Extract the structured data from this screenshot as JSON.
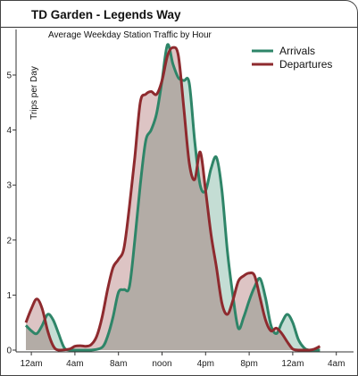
{
  "page": {
    "title": "TD Garden - Legends Way"
  },
  "chart_data": {
    "type": "area",
    "title": "Average Weekday Station Traffic by Hour",
    "xlabel": "",
    "ylabel": "Trips per Day",
    "x_unit": "hours since midnight (0–27)",
    "xlim": [
      0,
      27
    ],
    "ylim": [
      0,
      5.6
    ],
    "y_ticks": [
      0,
      1,
      2,
      3,
      4,
      5
    ],
    "x_ticks": [
      {
        "x": 0.5,
        "label": "12am"
      },
      {
        "x": 4.5,
        "label": "4am"
      },
      {
        "x": 8.5,
        "label": "8am"
      },
      {
        "x": 12.5,
        "label": "noon"
      },
      {
        "x": 16.5,
        "label": "4pm"
      },
      {
        "x": 20.5,
        "label": "8pm"
      },
      {
        "x": 24.5,
        "label": "12am"
      },
      {
        "x": 28.5,
        "label": "4am"
      }
    ],
    "legend_position": "top-right",
    "overlap_color": "#b3aca6",
    "series": [
      {
        "name": "Arrivals",
        "color": "#2e8568",
        "fill": "#c4ddd4",
        "points": [
          [
            0.0,
            0.45
          ],
          [
            0.5,
            0.35
          ],
          [
            1.0,
            0.3
          ],
          [
            1.5,
            0.45
          ],
          [
            2.0,
            0.65
          ],
          [
            2.5,
            0.55
          ],
          [
            3.0,
            0.3
          ],
          [
            3.5,
            0.05
          ],
          [
            4.0,
            0.0
          ],
          [
            5.0,
            0.0
          ],
          [
            6.0,
            0.0
          ],
          [
            7.0,
            0.05
          ],
          [
            7.5,
            0.25
          ],
          [
            8.0,
            0.6
          ],
          [
            8.5,
            1.05
          ],
          [
            9.0,
            1.1
          ],
          [
            9.5,
            1.15
          ],
          [
            10.0,
            2.0
          ],
          [
            10.5,
            3.0
          ],
          [
            11.0,
            3.8
          ],
          [
            11.5,
            4.0
          ],
          [
            12.0,
            4.3
          ],
          [
            12.5,
            4.9
          ],
          [
            13.0,
            5.55
          ],
          [
            13.5,
            5.2
          ],
          [
            14.0,
            4.95
          ],
          [
            14.5,
            4.9
          ],
          [
            15.0,
            4.85
          ],
          [
            15.5,
            3.8
          ],
          [
            16.0,
            3.0
          ],
          [
            16.5,
            2.9
          ],
          [
            17.0,
            3.3
          ],
          [
            17.5,
            3.5
          ],
          [
            18.0,
            2.9
          ],
          [
            18.5,
            1.8
          ],
          [
            19.0,
            1.0
          ],
          [
            19.5,
            0.4
          ],
          [
            20.0,
            0.6
          ],
          [
            20.5,
            0.9
          ],
          [
            21.0,
            1.15
          ],
          [
            21.5,
            1.3
          ],
          [
            22.0,
            0.95
          ],
          [
            22.5,
            0.45
          ],
          [
            23.0,
            0.3
          ],
          [
            23.5,
            0.5
          ],
          [
            24.0,
            0.65
          ],
          [
            24.5,
            0.5
          ],
          [
            25.0,
            0.2
          ],
          [
            25.5,
            0.05
          ],
          [
            26.0,
            0.0
          ],
          [
            27.0,
            0.0
          ]
        ]
      },
      {
        "name": "Departures",
        "color": "#8e2a2e",
        "fill": "#ddc4c4",
        "points": [
          [
            0.0,
            0.5
          ],
          [
            0.5,
            0.75
          ],
          [
            1.0,
            0.93
          ],
          [
            1.5,
            0.75
          ],
          [
            2.0,
            0.35
          ],
          [
            2.5,
            0.08
          ],
          [
            3.0,
            0.0
          ],
          [
            4.0,
            0.02
          ],
          [
            4.5,
            0.07
          ],
          [
            5.0,
            0.08
          ],
          [
            5.5,
            0.07
          ],
          [
            6.0,
            0.1
          ],
          [
            6.5,
            0.25
          ],
          [
            7.0,
            0.6
          ],
          [
            7.5,
            1.1
          ],
          [
            8.0,
            1.5
          ],
          [
            8.5,
            1.65
          ],
          [
            9.0,
            1.85
          ],
          [
            9.5,
            2.6
          ],
          [
            10.0,
            3.5
          ],
          [
            10.5,
            4.5
          ],
          [
            11.0,
            4.65
          ],
          [
            11.5,
            4.7
          ],
          [
            12.0,
            4.65
          ],
          [
            12.5,
            4.9
          ],
          [
            13.0,
            5.35
          ],
          [
            13.5,
            5.5
          ],
          [
            14.0,
            5.35
          ],
          [
            14.5,
            4.4
          ],
          [
            15.0,
            3.4
          ],
          [
            15.5,
            3.1
          ],
          [
            16.0,
            3.6
          ],
          [
            16.5,
            2.9
          ],
          [
            17.0,
            2.1
          ],
          [
            17.5,
            1.5
          ],
          [
            18.0,
            0.85
          ],
          [
            18.5,
            0.65
          ],
          [
            19.0,
            0.9
          ],
          [
            19.5,
            1.25
          ],
          [
            20.0,
            1.35
          ],
          [
            20.5,
            1.4
          ],
          [
            21.0,
            1.35
          ],
          [
            21.5,
            0.95
          ],
          [
            22.0,
            0.55
          ],
          [
            22.5,
            0.35
          ],
          [
            23.0,
            0.4
          ],
          [
            23.5,
            0.3
          ],
          [
            24.0,
            0.15
          ],
          [
            24.5,
            0.02
          ],
          [
            25.0,
            0.0
          ],
          [
            26.0,
            0.0
          ],
          [
            26.5,
            0.02
          ],
          [
            27.0,
            0.07
          ]
        ]
      }
    ]
  }
}
